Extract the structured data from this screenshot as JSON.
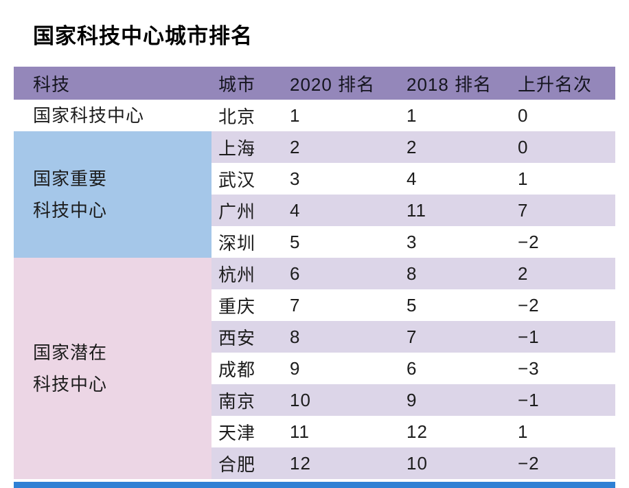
{
  "page": {
    "title": "国家科技中心城市排名"
  },
  "colors": {
    "header_bg": "#9487ba",
    "row_alt_bg": "#dcd5e8",
    "group_blue_bg": "#a5c7e9",
    "group_pink_bg": "#ecd6e5",
    "footer_bar": "#2f80d4",
    "text": "#1c1c1c"
  },
  "chart_data": {
    "type": "table",
    "title": "国家科技中心城市排名",
    "columns": [
      "科技",
      "城市",
      "2020 排名",
      "2018 排名",
      "上升名次"
    ],
    "groups": [
      {
        "label": "国家科技中心",
        "label_lines": [
          "国家科技中心"
        ],
        "rows": [
          [
            "北京",
            "1",
            "1",
            "0"
          ]
        ]
      },
      {
        "label": "国家重要科技中心",
        "label_lines": [
          "国家重要",
          "科技中心"
        ],
        "rows": [
          [
            "上海",
            "2",
            "2",
            "0"
          ],
          [
            "武汉",
            "3",
            "4",
            "1"
          ],
          [
            "广州",
            "4",
            "11",
            "7"
          ],
          [
            "深圳",
            "5",
            "3",
            "−2"
          ]
        ]
      },
      {
        "label": "国家潜在科技中心",
        "label_lines": [
          "国家潜在",
          "科技中心"
        ],
        "rows": [
          [
            "杭州",
            "6",
            "8",
            "2"
          ],
          [
            "重庆",
            "7",
            "5",
            "−2"
          ],
          [
            "西安",
            "8",
            "7",
            "−1"
          ],
          [
            "成都",
            "9",
            "6",
            "−3"
          ],
          [
            "南京",
            "10",
            "9",
            "−1"
          ],
          [
            "天津",
            "11",
            "12",
            "1"
          ],
          [
            "合肥",
            "12",
            "10",
            "−2"
          ]
        ]
      }
    ]
  }
}
